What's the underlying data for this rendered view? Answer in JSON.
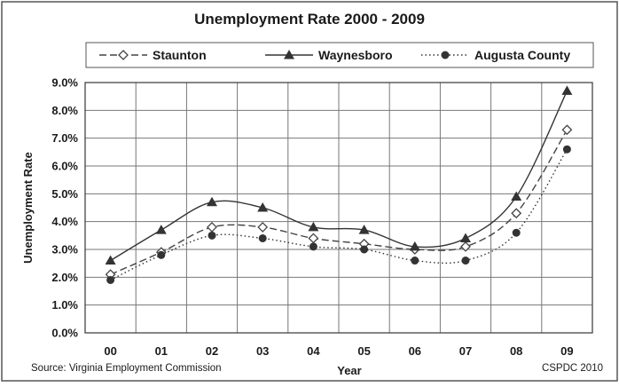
{
  "chart_data": {
    "type": "line",
    "title": "Unemployment Rate 2000 - 2009",
    "xlabel": "Year",
    "ylabel": "Unemployment Rate",
    "categories": [
      "00",
      "01",
      "02",
      "03",
      "04",
      "05",
      "06",
      "07",
      "08",
      "09"
    ],
    "ylim": [
      0,
      9
    ],
    "yticks": [
      "0.0%",
      "1.0%",
      "2.0%",
      "3.0%",
      "4.0%",
      "5.0%",
      "6.0%",
      "7.0%",
      "8.0%",
      "9.0%"
    ],
    "grid": true,
    "legend_position": "top",
    "series": [
      {
        "name": "Staunton",
        "values": [
          2.1,
          2.9,
          3.8,
          3.8,
          3.4,
          3.2,
          3.0,
          3.1,
          4.3,
          7.3
        ],
        "marker": "diamond-open",
        "line": "dashed",
        "color": "#444444"
      },
      {
        "name": "Waynesboro",
        "values": [
          2.6,
          3.7,
          4.7,
          4.5,
          3.8,
          3.7,
          3.1,
          3.4,
          4.9,
          8.7
        ],
        "marker": "triangle",
        "line": "solid",
        "color": "#333333"
      },
      {
        "name": "Augusta County",
        "values": [
          1.9,
          2.8,
          3.5,
          3.4,
          3.1,
          3.0,
          2.6,
          2.6,
          3.6,
          6.6
        ],
        "marker": "circle",
        "line": "dotted",
        "color": "#333333"
      }
    ],
    "source": "Source: Virginia Employment Commission",
    "credit": "CSPDC 2010"
  }
}
